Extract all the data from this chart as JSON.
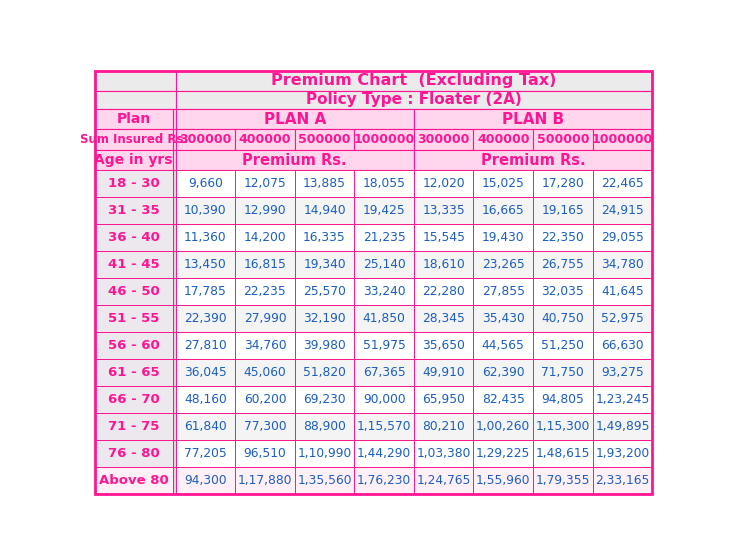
{
  "title1": "Premium Chart  (Excluding Tax)",
  "title2": "Policy Type : Floater (2A)",
  "plan_a_label": "PLAN A",
  "plan_b_label": "PLAN B",
  "sum_insured_label": "Sum Insured Rs.",
  "plan_label": "Plan",
  "age_label": "Age in yrs",
  "premium_label": "Premium Rs.",
  "sum_insured_values": [
    "300000",
    "400000",
    "500000",
    "1000000",
    "300000",
    "400000",
    "500000",
    "1000000"
  ],
  "age_groups": [
    "18 - 30",
    "31 - 35",
    "36 - 40",
    "41 - 45",
    "46 - 50",
    "51 - 55",
    "56 - 60",
    "61 - 65",
    "66 - 70",
    "71 - 75",
    "76 - 80",
    "Above 80"
  ],
  "data": [
    [
      "9,660",
      "12,075",
      "13,885",
      "18,055",
      "12,020",
      "15,025",
      "17,280",
      "22,465"
    ],
    [
      "10,390",
      "12,990",
      "14,940",
      "19,425",
      "13,335",
      "16,665",
      "19,165",
      "24,915"
    ],
    [
      "11,360",
      "14,200",
      "16,335",
      "21,235",
      "15,545",
      "19,430",
      "22,350",
      "29,055"
    ],
    [
      "13,450",
      "16,815",
      "19,340",
      "25,140",
      "18,610",
      "23,265",
      "26,755",
      "34,780"
    ],
    [
      "17,785",
      "22,235",
      "25,570",
      "33,240",
      "22,280",
      "27,855",
      "32,035",
      "41,645"
    ],
    [
      "22,390",
      "27,990",
      "32,190",
      "41,850",
      "28,345",
      "35,430",
      "40,750",
      "52,975"
    ],
    [
      "27,810",
      "34,760",
      "39,980",
      "51,975",
      "35,650",
      "44,565",
      "51,250",
      "66,630"
    ],
    [
      "36,045",
      "45,060",
      "51,820",
      "67,365",
      "49,910",
      "62,390",
      "71,750",
      "93,275"
    ],
    [
      "48,160",
      "60,200",
      "69,230",
      "90,000",
      "65,950",
      "82,435",
      "94,805",
      "1,23,245"
    ],
    [
      "61,840",
      "77,300",
      "88,900",
      "1,15,570",
      "80,210",
      "1,00,260",
      "1,15,300",
      "1,49,895"
    ],
    [
      "77,205",
      "96,510",
      "1,10,990",
      "1,44,290",
      "1,03,380",
      "1,29,225",
      "1,48,615",
      "1,93,200"
    ],
    [
      "94,300",
      "1,17,880",
      "1,35,560",
      "1,76,230",
      "1,24,765",
      "1,55,960",
      "1,79,355",
      "2,33,165"
    ]
  ],
  "pink": "#FF1493",
  "blue": "#1B5EBF",
  "header_pink_bg": "#FFD6EC",
  "title_gray_bg": "#EBEBEB",
  "age_col_gray_bg": "#E0E0E0",
  "white": "#FFFFFF",
  "border_color": "#FF1493",
  "row_white": "#FFFFFF",
  "row_light": "#F4F4F4",
  "last_row_pink": "#FFF0F8",
  "fig_w": 7.29,
  "fig_h": 5.59,
  "dpi": 100
}
